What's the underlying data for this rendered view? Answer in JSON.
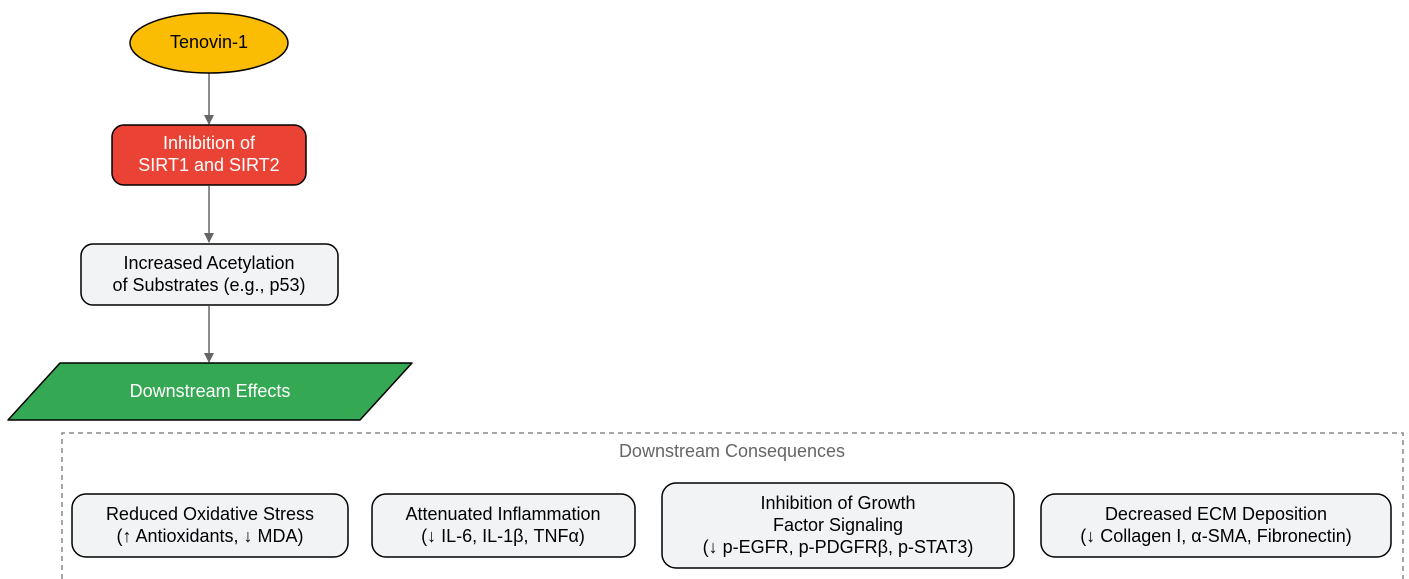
{
  "nodes": [
    {
      "label": [
        "Tenovin-1"
      ]
    },
    {
      "label": [
        "Inhibition of",
        "SIRT1 and SIRT2"
      ]
    },
    {
      "label": [
        "Increased Acetylation",
        "of Substrates (e.g., p53)"
      ]
    },
    {
      "label": [
        "Downstream Effects"
      ]
    }
  ],
  "cluster": {
    "title": "Downstream Consequences",
    "nodes": [
      {
        "label": [
          "Reduced Oxidative Stress",
          "(↑ Antioxidants, ↓ MDA)"
        ]
      },
      {
        "label": [
          "Attenuated Inflammation",
          "(↓ IL-6, IL-1β, TNFα)"
        ]
      },
      {
        "label": [
          "Inhibition of Growth",
          "Factor Signaling",
          "(↓ p-EGFR, p-PDGFRβ, p-STAT3)"
        ]
      },
      {
        "label": [
          "Decreased ECM Deposition",
          "(↓ Collagen I, α-SMA, Fibronectin)"
        ]
      }
    ]
  }
}
